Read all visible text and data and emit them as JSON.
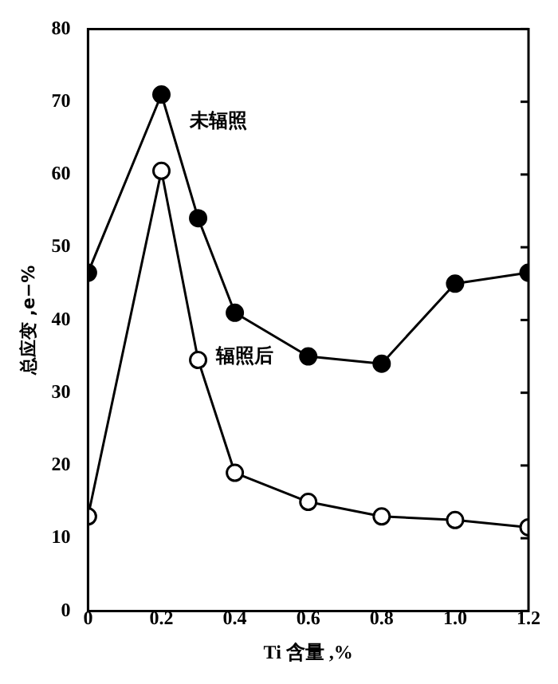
{
  "chart_data": {
    "type": "line",
    "xlabel": "Ti 含量 ,%",
    "ylabel": "总应变 ,e−%",
    "xlim": [
      0,
      1.2
    ],
    "xticks": [
      {
        "value": 0,
        "label": "0"
      },
      0.2,
      0.4,
      0.6,
      0.8,
      {
        "value": 1,
        "label": "1.0"
      },
      1.2
    ],
    "ylim": [
      0,
      80
    ],
    "yticks": [
      0,
      10,
      20,
      30,
      40,
      50,
      60,
      70,
      80
    ],
    "grid": false,
    "legend": false,
    "line_style": "solid",
    "series": [
      {
        "name": "未辐照",
        "color": "#000000",
        "marker": "circle",
        "x": [
          0,
          0.2,
          0.3,
          0.4,
          0.6,
          0.8,
          1.0,
          1.2
        ],
        "values": [
          46.5,
          71,
          54,
          41,
          35,
          34,
          45,
          46.5
        ]
      },
      {
        "name": "辐照后",
        "color": "#000000",
        "marker": "circle",
        "x": [
          0,
          0.2,
          0.3,
          0.4,
          0.6,
          0.8,
          1.0,
          1.2
        ],
        "values": [
          13,
          60.5,
          34.5,
          19,
          15,
          13,
          12.5,
          11.5
        ]
      }
    ]
  }
}
